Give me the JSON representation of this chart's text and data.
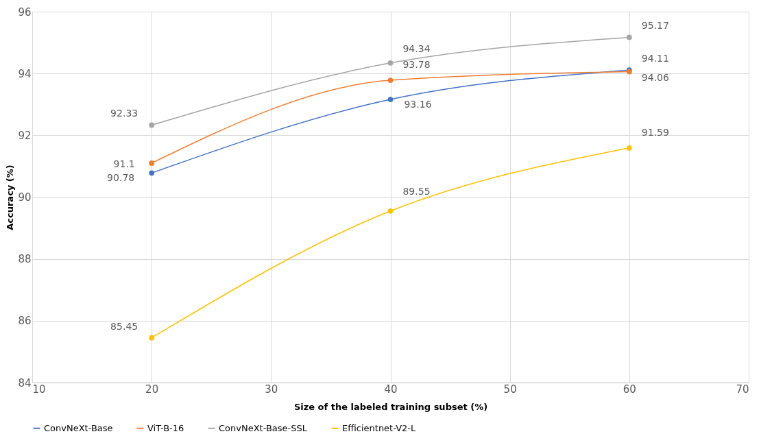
{
  "chart_data": {
    "type": "line",
    "xlabel": "Size of the labeled training subset (%)",
    "ylabel": "Accuracy (%)",
    "x": [
      20,
      40,
      60
    ],
    "series": [
      {
        "name": "ConvNeXt-Base",
        "color": "#4472c4",
        "values": [
          90.78,
          93.16,
          94.11
        ]
      },
      {
        "name": "ViT-B-16",
        "color": "#ed7d31",
        "values": [
          91.1,
          93.78,
          94.06
        ]
      },
      {
        "name": "ConvNeXt-Base-SSL",
        "color": "#a5a5a5",
        "values": [
          92.33,
          94.34,
          95.17
        ]
      },
      {
        "name": "Efficientnet-V2-L",
        "color": "#ffc000",
        "values": [
          85.45,
          89.55,
          91.59
        ]
      }
    ],
    "xlim": [
      10,
      70
    ],
    "xticks": [
      10,
      20,
      30,
      40,
      50,
      60,
      70
    ],
    "ylim": [
      84,
      96
    ],
    "yticks": [
      84,
      86,
      88,
      90,
      92,
      94,
      96
    ],
    "grid": true,
    "legend": "bottom",
    "marker": "circle",
    "line_style": "solid",
    "data_labels": true
  }
}
